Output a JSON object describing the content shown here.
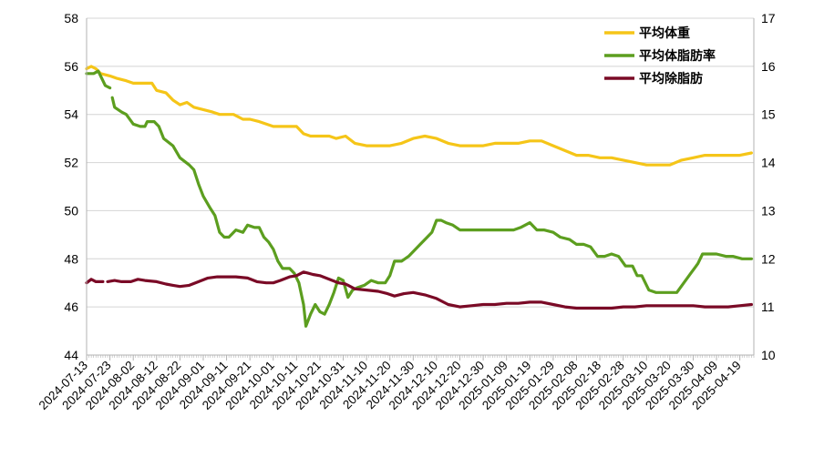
{
  "chart_data": {
    "type": "line",
    "title": "",
    "xlabel": "",
    "ylabel": "",
    "y2label": "",
    "x_start": "2024-07-13",
    "x_end": "2025-04-25",
    "x_ticks": [
      "2024-07-13",
      "2024-07-23",
      "2024-08-02",
      "2024-08-12",
      "2024-08-22",
      "2024-09-01",
      "2024-09-11",
      "2024-09-21",
      "2024-10-01",
      "2024-10-11",
      "2024-10-21",
      "2024-10-31",
      "2024-11-10",
      "2024-11-20",
      "2024-11-30",
      "2024-12-10",
      "2024-12-20",
      "2024-12-30",
      "2025-01-09",
      "2025-01-19",
      "2025-01-29",
      "2025-02-08",
      "2025-02-18",
      "2025-02-28",
      "2025-03-10",
      "2025-03-20",
      "2025-03-30",
      "2025-04-09",
      "2025-04-19"
    ],
    "ylim": [
      44,
      58
    ],
    "y_ticks": [
      44,
      46,
      48,
      50,
      52,
      54,
      56,
      58
    ],
    "y2lim": [
      10,
      17
    ],
    "y2_ticks": [
      10,
      11,
      12,
      13,
      14,
      15,
      16,
      17
    ],
    "grid": "horizontal",
    "legend_position": "top-right",
    "series": [
      {
        "name": "平均体重",
        "axis": "left",
        "color": "#F5C518",
        "points": [
          [
            "2024-07-13",
            55.9
          ],
          [
            "2024-07-15",
            56.0
          ],
          [
            "2024-07-17",
            55.9
          ],
          [
            "2024-07-19",
            55.7
          ],
          [
            "2024-07-23",
            55.6
          ],
          [
            "2024-07-26",
            55.5
          ],
          [
            "2024-07-30",
            55.4
          ],
          [
            "2024-08-02",
            55.3
          ],
          [
            "2024-08-06",
            55.3
          ],
          [
            "2024-08-10",
            55.3
          ],
          [
            "2024-08-12",
            55.0
          ],
          [
            "2024-08-16",
            54.9
          ],
          [
            "2024-08-19",
            54.6
          ],
          [
            "2024-08-22",
            54.4
          ],
          [
            "2024-08-25",
            54.5
          ],
          [
            "2024-08-28",
            54.3
          ],
          [
            "2024-09-01",
            54.2
          ],
          [
            "2024-09-05",
            54.1
          ],
          [
            "2024-09-08",
            54.0
          ],
          [
            "2024-09-11",
            54.0
          ],
          [
            "2024-09-14",
            54.0
          ],
          [
            "2024-09-18",
            53.8
          ],
          [
            "2024-09-21",
            53.8
          ],
          [
            "2024-09-25",
            53.7
          ],
          [
            "2024-09-28",
            53.6
          ],
          [
            "2024-10-01",
            53.5
          ],
          [
            "2024-10-06",
            53.5
          ],
          [
            "2024-10-11",
            53.5
          ],
          [
            "2024-10-14",
            53.2
          ],
          [
            "2024-10-17",
            53.1
          ],
          [
            "2024-10-21",
            53.1
          ],
          [
            "2024-10-25",
            53.1
          ],
          [
            "2024-10-28",
            53.0
          ],
          [
            "2024-11-01",
            53.1
          ],
          [
            "2024-11-05",
            52.8
          ],
          [
            "2024-11-10",
            52.7
          ],
          [
            "2024-11-15",
            52.7
          ],
          [
            "2024-11-20",
            52.7
          ],
          [
            "2024-11-25",
            52.8
          ],
          [
            "2024-11-30",
            53.0
          ],
          [
            "2024-12-05",
            53.1
          ],
          [
            "2024-12-10",
            53.0
          ],
          [
            "2024-12-15",
            52.8
          ],
          [
            "2024-12-20",
            52.7
          ],
          [
            "2024-12-25",
            52.7
          ],
          [
            "2024-12-30",
            52.7
          ],
          [
            "2025-01-04",
            52.8
          ],
          [
            "2025-01-09",
            52.8
          ],
          [
            "2025-01-14",
            52.8
          ],
          [
            "2025-01-19",
            52.9
          ],
          [
            "2025-01-24",
            52.9
          ],
          [
            "2025-01-29",
            52.7
          ],
          [
            "2025-02-03",
            52.5
          ],
          [
            "2025-02-08",
            52.3
          ],
          [
            "2025-02-13",
            52.3
          ],
          [
            "2025-02-18",
            52.2
          ],
          [
            "2025-02-23",
            52.2
          ],
          [
            "2025-02-28",
            52.1
          ],
          [
            "2025-03-05",
            52.0
          ],
          [
            "2025-03-10",
            51.9
          ],
          [
            "2025-03-15",
            51.9
          ],
          [
            "2025-03-20",
            51.9
          ],
          [
            "2025-03-25",
            52.1
          ],
          [
            "2025-03-30",
            52.2
          ],
          [
            "2025-04-04",
            52.3
          ],
          [
            "2025-04-09",
            52.3
          ],
          [
            "2025-04-14",
            52.3
          ],
          [
            "2025-04-19",
            52.3
          ],
          [
            "2025-04-24",
            52.4
          ]
        ]
      },
      {
        "name": "平均体脂肪率",
        "axis": "right",
        "color": "#5C9E1F",
        "points": [
          [
            "2024-07-13",
            15.85
          ],
          [
            "2024-07-16",
            15.85
          ],
          [
            "2024-07-18",
            15.9
          ],
          [
            "2024-07-21",
            15.6
          ],
          [
            "2024-07-23",
            15.55
          ],
          [
            "null",
            null
          ],
          [
            "2024-07-24",
            15.35
          ],
          [
            "2024-07-25",
            15.15
          ],
          [
            "2024-07-28",
            15.05
          ],
          [
            "2024-07-30",
            15.0
          ],
          [
            "2024-08-02",
            14.8
          ],
          [
            "2024-08-05",
            14.75
          ],
          [
            "2024-08-07",
            14.75
          ],
          [
            "2024-08-08",
            14.85
          ],
          [
            "2024-08-11",
            14.85
          ],
          [
            "2024-08-13",
            14.75
          ],
          [
            "2024-08-15",
            14.5
          ],
          [
            "2024-08-19",
            14.35
          ],
          [
            "2024-08-22",
            14.1
          ],
          [
            "2024-08-26",
            13.95
          ],
          [
            "2024-08-28",
            13.85
          ],
          [
            "2024-08-30",
            13.55
          ],
          [
            "2024-09-01",
            13.3
          ],
          [
            "2024-09-04",
            13.05
          ],
          [
            "2024-09-06",
            12.9
          ],
          [
            "2024-09-08",
            12.55
          ],
          [
            "2024-09-10",
            12.45
          ],
          [
            "2024-09-12",
            12.45
          ],
          [
            "2024-09-15",
            12.6
          ],
          [
            "2024-09-18",
            12.55
          ],
          [
            "2024-09-20",
            12.7
          ],
          [
            "2024-09-23",
            12.65
          ],
          [
            "2024-09-25",
            12.65
          ],
          [
            "2024-09-27",
            12.45
          ],
          [
            "2024-09-29",
            12.35
          ],
          [
            "2024-10-01",
            12.2
          ],
          [
            "2024-10-03",
            11.95
          ],
          [
            "2024-10-05",
            11.8
          ],
          [
            "2024-10-08",
            11.8
          ],
          [
            "2024-10-10",
            11.7
          ],
          [
            "2024-10-12",
            11.5
          ],
          [
            "2024-10-14",
            11.05
          ],
          [
            "2024-10-15",
            10.6
          ],
          [
            "2024-10-17",
            10.85
          ],
          [
            "2024-10-19",
            11.05
          ],
          [
            "2024-10-21",
            10.9
          ],
          [
            "2024-10-23",
            10.85
          ],
          [
            "2024-10-25",
            11.05
          ],
          [
            "2024-10-27",
            11.3
          ],
          [
            "2024-10-29",
            11.6
          ],
          [
            "2024-10-31",
            11.55
          ],
          [
            "2024-11-02",
            11.2
          ],
          [
            "2024-11-04",
            11.35
          ],
          [
            "2024-11-06",
            11.4
          ],
          [
            "2024-11-09",
            11.45
          ],
          [
            "2024-11-12",
            11.55
          ],
          [
            "2024-11-15",
            11.5
          ],
          [
            "2024-11-18",
            11.5
          ],
          [
            "2024-11-20",
            11.65
          ],
          [
            "2024-11-22",
            11.95
          ],
          [
            "2024-11-25",
            11.95
          ],
          [
            "2024-11-28",
            12.05
          ],
          [
            "2024-11-30",
            12.15
          ],
          [
            "2024-12-03",
            12.3
          ],
          [
            "2024-12-06",
            12.45
          ],
          [
            "2024-12-08",
            12.55
          ],
          [
            "2024-12-10",
            12.8
          ],
          [
            "2024-12-12",
            12.8
          ],
          [
            "2024-12-14",
            12.75
          ],
          [
            "2024-12-17",
            12.7
          ],
          [
            "2024-12-20",
            12.6
          ],
          [
            "2024-12-23",
            12.6
          ],
          [
            "2024-12-26",
            12.6
          ],
          [
            "2024-12-30",
            12.6
          ],
          [
            "2025-01-03",
            12.6
          ],
          [
            "2025-01-06",
            12.6
          ],
          [
            "2025-01-09",
            12.6
          ],
          [
            "2025-01-12",
            12.6
          ],
          [
            "2025-01-15",
            12.65
          ],
          [
            "2025-01-19",
            12.75
          ],
          [
            "2025-01-22",
            12.6
          ],
          [
            "2025-01-25",
            12.6
          ],
          [
            "2025-01-29",
            12.55
          ],
          [
            "2025-02-01",
            12.45
          ],
          [
            "2025-02-05",
            12.4
          ],
          [
            "2025-02-08",
            12.3
          ],
          [
            "2025-02-11",
            12.3
          ],
          [
            "2025-02-14",
            12.25
          ],
          [
            "2025-02-17",
            12.05
          ],
          [
            "2025-02-20",
            12.05
          ],
          [
            "2025-02-23",
            12.1
          ],
          [
            "2025-02-26",
            12.05
          ],
          [
            "2025-03-01",
            11.85
          ],
          [
            "2025-03-04",
            11.85
          ],
          [
            "2025-03-06",
            11.65
          ],
          [
            "2025-03-08",
            11.65
          ],
          [
            "2025-03-11",
            11.35
          ],
          [
            "2025-03-14",
            11.3
          ],
          [
            "2025-03-17",
            11.3
          ],
          [
            "2025-03-20",
            11.3
          ],
          [
            "2025-03-23",
            11.3
          ],
          [
            "2025-03-26",
            11.5
          ],
          [
            "2025-03-29",
            11.7
          ],
          [
            "2025-04-01",
            11.9
          ],
          [
            "2025-04-03",
            12.1
          ],
          [
            "2025-04-06",
            12.1
          ],
          [
            "2025-04-09",
            12.1
          ],
          [
            "2025-04-13",
            12.05
          ],
          [
            "2025-04-16",
            12.05
          ],
          [
            "2025-04-20",
            12.0
          ],
          [
            "2025-04-24",
            12.0
          ]
        ]
      },
      {
        "name": "平均除脂肪",
        "axis": "left",
        "color": "#7A0A26",
        "points": [
          [
            "2024-07-13",
            47.0
          ],
          [
            "2024-07-15",
            47.15
          ],
          [
            "2024-07-17",
            47.05
          ],
          [
            "2024-07-20",
            47.05
          ],
          [
            "null",
            null
          ],
          [
            "2024-07-22",
            47.05
          ],
          [
            "2024-07-25",
            47.1
          ],
          [
            "2024-07-28",
            47.05
          ],
          [
            "2024-08-01",
            47.05
          ],
          [
            "2024-08-04",
            47.15
          ],
          [
            "2024-08-07",
            47.1
          ],
          [
            "2024-08-12",
            47.05
          ],
          [
            "2024-08-16",
            46.95
          ],
          [
            "2024-08-19",
            46.9
          ],
          [
            "2024-08-22",
            46.85
          ],
          [
            "2024-08-26",
            46.9
          ],
          [
            "2024-08-30",
            47.05
          ],
          [
            "2024-09-03",
            47.2
          ],
          [
            "2024-09-07",
            47.25
          ],
          [
            "2024-09-11",
            47.25
          ],
          [
            "2024-09-15",
            47.25
          ],
          [
            "2024-09-20",
            47.2
          ],
          [
            "2024-09-24",
            47.05
          ],
          [
            "2024-09-28",
            47.0
          ],
          [
            "2024-10-01",
            47.0
          ],
          [
            "2024-10-04",
            47.1
          ],
          [
            "2024-10-08",
            47.25
          ],
          [
            "2024-10-11",
            47.3
          ],
          [
            "2024-10-14",
            47.45
          ],
          [
            "2024-10-16",
            47.4
          ],
          [
            "2024-10-18",
            47.35
          ],
          [
            "2024-10-21",
            47.3
          ],
          [
            "2024-10-25",
            47.15
          ],
          [
            "2024-10-29",
            47.0
          ],
          [
            "2024-11-01",
            46.95
          ],
          [
            "2024-11-05",
            46.75
          ],
          [
            "2024-11-10",
            46.7
          ],
          [
            "2024-11-15",
            46.65
          ],
          [
            "2024-11-19",
            46.55
          ],
          [
            "2024-11-22",
            46.45
          ],
          [
            "2024-11-26",
            46.55
          ],
          [
            "2024-11-30",
            46.6
          ],
          [
            "2024-12-05",
            46.5
          ],
          [
            "2024-12-10",
            46.35
          ],
          [
            "2024-12-15",
            46.1
          ],
          [
            "2024-12-20",
            46.0
          ],
          [
            "2024-12-25",
            46.05
          ],
          [
            "2024-12-30",
            46.1
          ],
          [
            "2025-01-04",
            46.1
          ],
          [
            "2025-01-09",
            46.15
          ],
          [
            "2025-01-14",
            46.15
          ],
          [
            "2025-01-19",
            46.2
          ],
          [
            "2025-01-24",
            46.2
          ],
          [
            "2025-01-29",
            46.1
          ],
          [
            "2025-02-03",
            46.0
          ],
          [
            "2025-02-08",
            45.95
          ],
          [
            "2025-02-13",
            45.95
          ],
          [
            "2025-02-18",
            45.95
          ],
          [
            "2025-02-23",
            45.95
          ],
          [
            "2025-02-28",
            46.0
          ],
          [
            "2025-03-05",
            46.0
          ],
          [
            "2025-03-10",
            46.05
          ],
          [
            "2025-03-15",
            46.05
          ],
          [
            "2025-03-20",
            46.05
          ],
          [
            "2025-03-25",
            46.05
          ],
          [
            "2025-03-30",
            46.05
          ],
          [
            "2025-04-04",
            46.0
          ],
          [
            "2025-04-09",
            46.0
          ],
          [
            "2025-04-14",
            46.0
          ],
          [
            "2025-04-19",
            46.05
          ],
          [
            "2025-04-24",
            46.1
          ]
        ]
      }
    ]
  }
}
